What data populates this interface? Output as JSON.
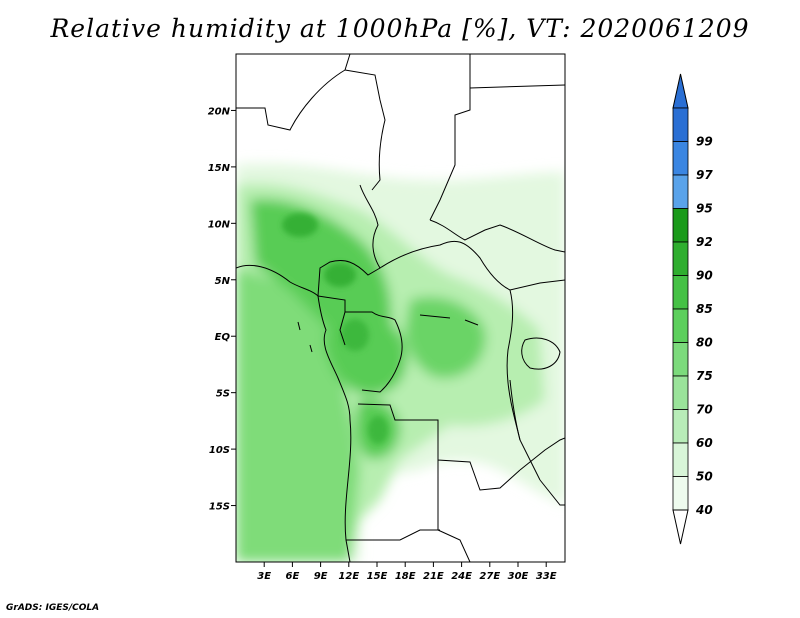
{
  "title": "Relative humidity at 1000hPa [%], VT: 2020061209",
  "credit": "GrADS: IGES/COLA",
  "map": {
    "lat_labels": [
      "20N",
      "15N",
      "10N",
      "5N",
      "EQ",
      "5S",
      "10S",
      "15S"
    ],
    "lon_labels": [
      "3E",
      "6E",
      "9E",
      "12E",
      "15E",
      "18E",
      "21E",
      "24E",
      "27E",
      "30E",
      "33E"
    ],
    "lat_values": [
      20,
      15,
      10,
      5,
      0,
      -5,
      -10,
      -15
    ],
    "lon_values": [
      3,
      6,
      9,
      12,
      15,
      18,
      21,
      24,
      27,
      30,
      33
    ],
    "lon_range": [
      0,
      35
    ],
    "lat_range": [
      -20,
      25
    ],
    "field_colors": {
      "outside_region": "#ffffff",
      "light": "#e3f8e0",
      "mid": "#b7eeb0",
      "ocean": "#7fdc79",
      "dark": "#58cc55",
      "darkest": "#35b035"
    }
  },
  "colorbar": {
    "labels": [
      "99",
      "97",
      "95",
      "92",
      "90",
      "85",
      "80",
      "75",
      "70",
      "60",
      "50",
      "40"
    ],
    "colors": [
      "#2a6fd4",
      "#3b86e2",
      "#5aa3ea",
      "#1a9a1a",
      "#2fae2f",
      "#45c145",
      "#5ccf5c",
      "#7cda7c",
      "#9ae39a",
      "#b8ecb8",
      "#d8f5d8",
      "#eefbee"
    ],
    "over_color": "#2a6fd4",
    "under_color": "#ffffff"
  }
}
